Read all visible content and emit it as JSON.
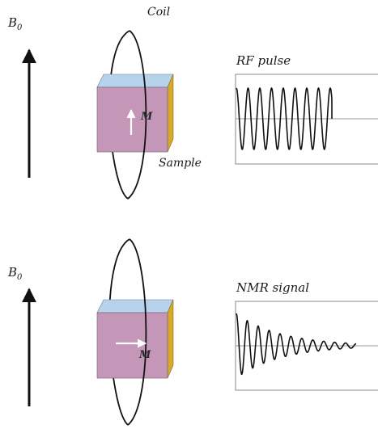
{
  "scene_top": {
    "field_label": "B",
    "field_subscript": "0",
    "coil_label": "Coil",
    "sample_label": "Sample",
    "magnetization_label": "M",
    "magnetization_direction": "up",
    "signal_title": "RF pulse"
  },
  "scene_bottom": {
    "field_label": "B",
    "field_subscript": "0",
    "magnetization_label": "M",
    "magnetization_direction": "right",
    "signal_title": "NMR signal"
  },
  "colors": {
    "cube_front": "#c497b8",
    "cube_top": "#b7d3ec",
    "cube_side": "#d6aa2e",
    "ink": "#111111"
  }
}
